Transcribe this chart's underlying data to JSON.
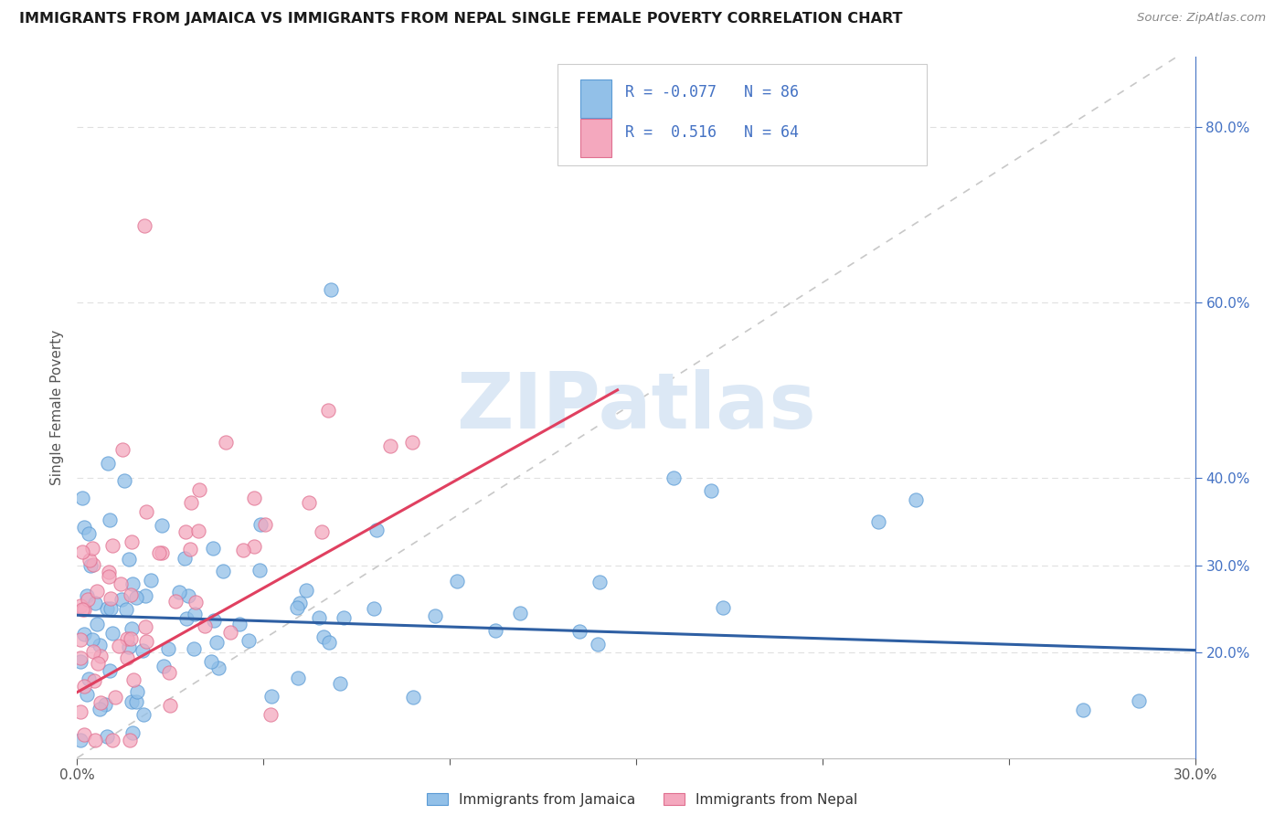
{
  "title": "IMMIGRANTS FROM JAMAICA VS IMMIGRANTS FROM NEPAL SINGLE FEMALE POVERTY CORRELATION CHART",
  "source": "Source: ZipAtlas.com",
  "ylabel": "Single Female Poverty",
  "xlim": [
    0.0,
    0.3
  ],
  "ylim": [
    0.08,
    0.88
  ],
  "xtick_positions": [
    0.0,
    0.05,
    0.1,
    0.15,
    0.2,
    0.25,
    0.3
  ],
  "xticklabels": [
    "0.0%",
    "",
    "",
    "",
    "",
    "",
    "30.0%"
  ],
  "ytick_right_positions": [
    0.2,
    0.3,
    0.4,
    0.6,
    0.8
  ],
  "ytick_right_labels": [
    "20.0%",
    "30.0%",
    "40.0%",
    "60.0%",
    "80.0%"
  ],
  "jamaica_color": "#92c0e8",
  "nepal_color": "#f4a8be",
  "jamaica_edge_color": "#5b9bd5",
  "nepal_edge_color": "#e07090",
  "jamaica_line_color": "#2e5fa3",
  "nepal_line_color": "#e04060",
  "ref_line_color": "#c8c8c8",
  "watermark_color": "#dce8f5",
  "grid_color": "#e0e0e0",
  "title_color": "#1a1a1a",
  "source_color": "#888888",
  "axis_color": "#555555",
  "right_tick_color": "#4472c4",
  "legend_border_color": "#cccccc",
  "bottom_border_color": "#bbbbbb",
  "jamaica_R": -0.077,
  "jamaica_N": 86,
  "nepal_R": 0.516,
  "nepal_N": 64,
  "jamaica_trend_x": [
    0.0,
    0.3
  ],
  "jamaica_trend_y": [
    0.243,
    0.203
  ],
  "nepal_trend_x": [
    0.0,
    0.145
  ],
  "nepal_trend_y": [
    0.155,
    0.5
  ]
}
